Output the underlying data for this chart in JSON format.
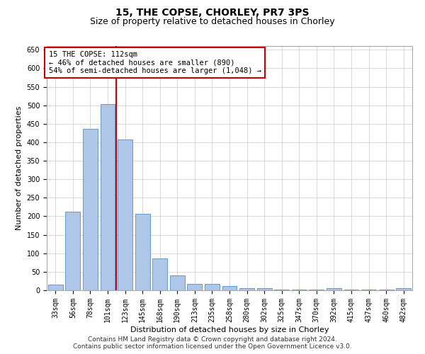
{
  "title": "15, THE COPSE, CHORLEY, PR7 3PS",
  "subtitle": "Size of property relative to detached houses in Chorley",
  "xlabel": "Distribution of detached houses by size in Chorley",
  "ylabel": "Number of detached properties",
  "footer_line1": "Contains HM Land Registry data © Crown copyright and database right 2024.",
  "footer_line2": "Contains public sector information licensed under the Open Government Licence v3.0.",
  "annotation_line1": "15 THE COPSE: 112sqm",
  "annotation_line2": "← 46% of detached houses are smaller (890)",
  "annotation_line3": "54% of semi-detached houses are larger (1,048) →",
  "property_size_sqm": 112,
  "bar_labels": [
    "33sqm",
    "56sqm",
    "78sqm",
    "101sqm",
    "123sqm",
    "145sqm",
    "168sqm",
    "190sqm",
    "213sqm",
    "235sqm",
    "258sqm",
    "280sqm",
    "302sqm",
    "325sqm",
    "347sqm",
    "370sqm",
    "392sqm",
    "415sqm",
    "437sqm",
    "460sqm",
    "482sqm"
  ],
  "bar_values": [
    15,
    212,
    436,
    503,
    408,
    207,
    86,
    40,
    18,
    17,
    11,
    6,
    5,
    1,
    1,
    1,
    5,
    1,
    1,
    1,
    5
  ],
  "bar_color": "#aec6e8",
  "bar_edge_color": "#5a8fc3",
  "vline_color": "#cc0000",
  "ylim": [
    0,
    660
  ],
  "yticks": [
    0,
    50,
    100,
    150,
    200,
    250,
    300,
    350,
    400,
    450,
    500,
    550,
    600,
    650
  ],
  "grid_color": "#cccccc",
  "background_color": "#ffffff",
  "annotation_box_color": "#ffffff",
  "annotation_box_edge": "#cc0000",
  "title_fontsize": 10,
  "subtitle_fontsize": 9,
  "footer_fontsize": 6.5,
  "xlabel_fontsize": 8,
  "ylabel_fontsize": 8,
  "tick_fontsize": 7,
  "annotation_fontsize": 7.5
}
